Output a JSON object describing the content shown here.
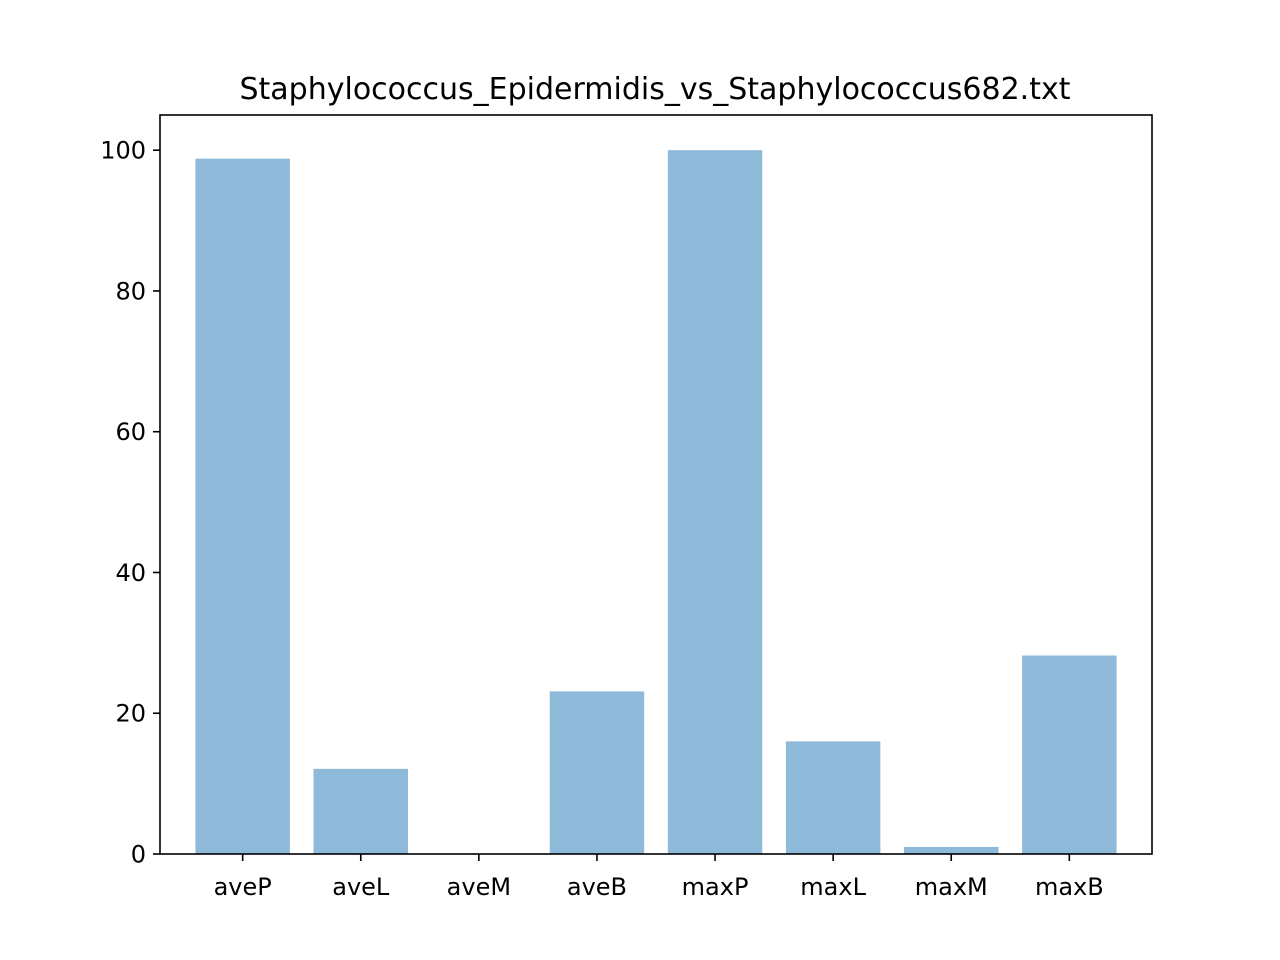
{
  "chart_data": {
    "type": "bar",
    "title": "Staphylococcus_Epidermidis_vs_Staphylococcus682.txt",
    "xlabel": "",
    "ylabel": "",
    "categories": [
      "aveP",
      "aveL",
      "aveM",
      "aveB",
      "maxP",
      "maxL",
      "maxM",
      "maxB"
    ],
    "values": [
      98.8,
      12.1,
      0.0,
      23.1,
      100.0,
      16.0,
      1.0,
      28.2
    ],
    "ylim": [
      0,
      105
    ],
    "yticks": [
      0,
      20,
      40,
      60,
      80,
      100
    ],
    "bar_color": "#8fb9d9",
    "grid": false,
    "legend": "none"
  }
}
